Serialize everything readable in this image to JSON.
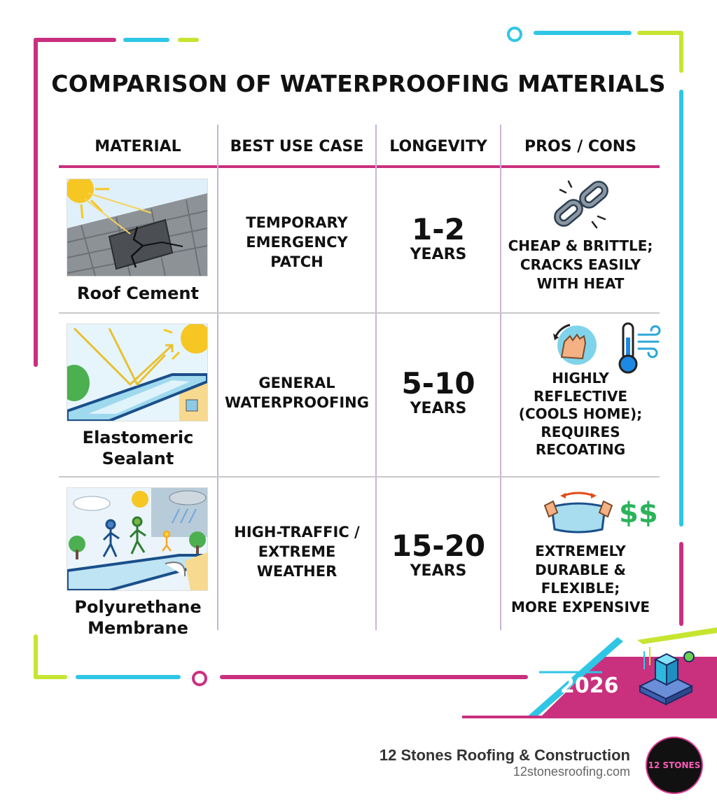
{
  "title": "COMPARISON OF WATERPROOFING MATERIALS",
  "columns": [
    "MATERIAL",
    "BEST USE CASE",
    "LONGEVITY",
    "PROS / CONS"
  ],
  "rows": [
    {
      "material": "Roof Cement",
      "use": [
        "TEMPORARY",
        "EMERGENCY",
        "PATCH"
      ],
      "longevity_num": "1-2",
      "longevity_unit": "YEARS",
      "pros_cons": [
        "CHEAP & BRITTLE;",
        "CRACKS EASILY",
        "WITH HEAT"
      ],
      "icons": [
        "broken-chain-icon"
      ]
    },
    {
      "material": [
        "Elastomeric",
        "Sealant"
      ],
      "use": [
        "GENERAL",
        "WATERPROOFING"
      ],
      "longevity_num": "5-10",
      "longevity_unit": "YEARS",
      "pros_cons": [
        "HIGHLY",
        "REFLECTIVE",
        "(COOLS HOME);",
        "REQUIRES",
        "RECOATING"
      ],
      "icons": [
        "hand-recoat-icon",
        "thermometer-icon"
      ]
    },
    {
      "material": [
        "Polyurethane",
        "Membrane"
      ],
      "use": [
        "HIGH-TRAFFIC /",
        "EXTREME",
        "WEATHER"
      ],
      "longevity_num": "15-20",
      "longevity_unit": "YEARS",
      "pros_cons": [
        "EXTREMELY",
        "DURABLE &",
        "FLEXIBLE;",
        "MORE EXPENSIVE"
      ],
      "icons": [
        "stretch-membrane-icon",
        "dollar-icon"
      ],
      "dollar_text": "$$"
    }
  ],
  "badge_year": "2026",
  "footer": {
    "company": "12 Stones Roofing & Construction",
    "url": "12stonesroofing.com",
    "logo_text": "12 STONES"
  },
  "colors": {
    "magenta": "#c9307e",
    "cyan": "#2fc6e6",
    "lime": "#c6e531",
    "header_rule": "#c9307e",
    "dollar": "#2bb35a"
  }
}
